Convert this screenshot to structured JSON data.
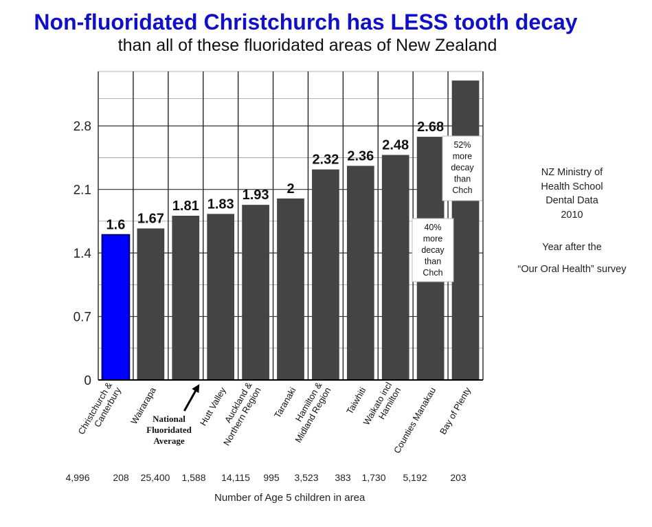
{
  "title": "Non-fluoridated Christchurch has LESS tooth decay",
  "subtitle": "than all of these fluoridated areas of New Zealand",
  "side_note": {
    "lines": [
      "NZ Ministry of",
      "Health School",
      "Dental Data",
      "2010"
    ],
    "year_after": "Year after the",
    "survey": "“Our Oral Health” survey"
  },
  "national_average_label": [
    "National",
    "Fluoridated",
    "Average"
  ],
  "children_counts": [
    "4,996",
    "208",
    "25,400",
    "1,588",
    "14,115",
    "995",
    "3,523",
    "383",
    "1,730",
    "5,192",
    "203"
  ],
  "children_counts_label": "Number of Age 5 children in area",
  "callouts": [
    {
      "lines": [
        "40%",
        "more",
        "decay",
        "than",
        "Chch"
      ]
    },
    {
      "lines": [
        "52%",
        "more",
        "decay",
        "than",
        "Chch"
      ]
    }
  ],
  "colors": {
    "highlight": "#0000ff",
    "bar": "#444444",
    "title": "#1010c8"
  },
  "chart_data": {
    "type": "bar",
    "categories": [
      "Christchurch & Canterbury",
      "Wairarapa",
      "National Fluoridated Average",
      "Hutt Valley",
      "Auckland & Northern Region",
      "Taranaki",
      "Hamilton & Midland Region",
      "Taiwhiti",
      "Waikato incl Hamilton",
      "Counties Manakau",
      "Bay of Plenty"
    ],
    "tick_labels": [
      [
        "Christchurch &",
        "Canterbury"
      ],
      [
        "Wairarapa"
      ],
      [],
      [
        "Hutt Valley"
      ],
      [
        "Auckland &",
        "Northern Region"
      ],
      [
        "Taranaki"
      ],
      [
        "Hamilton &",
        "Midland Region"
      ],
      [
        "Taiwhiti"
      ],
      [
        "Waikato incl",
        "Hamilton"
      ],
      [
        "Counties Manakau"
      ],
      [
        "Bay of Plenty"
      ]
    ],
    "values": [
      1.6,
      1.67,
      1.81,
      1.83,
      1.93,
      2.0,
      2.32,
      2.36,
      2.48,
      2.68,
      3.3
    ],
    "data_labels": [
      "1.6",
      "1.67",
      "1.81",
      "1.83",
      "1.93",
      "2",
      "2.32",
      "2.36",
      "2.48",
      "2.68",
      ""
    ],
    "highlight_index": 0,
    "yticks": [
      0,
      0.7,
      1.4,
      2.1,
      2.8
    ],
    "ytick_labels": [
      "0",
      "0.7",
      "1.4",
      "2.1",
      "2.8"
    ],
    "ylim": [
      0,
      3.4
    ],
    "grid": true,
    "xlabel": "",
    "ylabel": ""
  }
}
